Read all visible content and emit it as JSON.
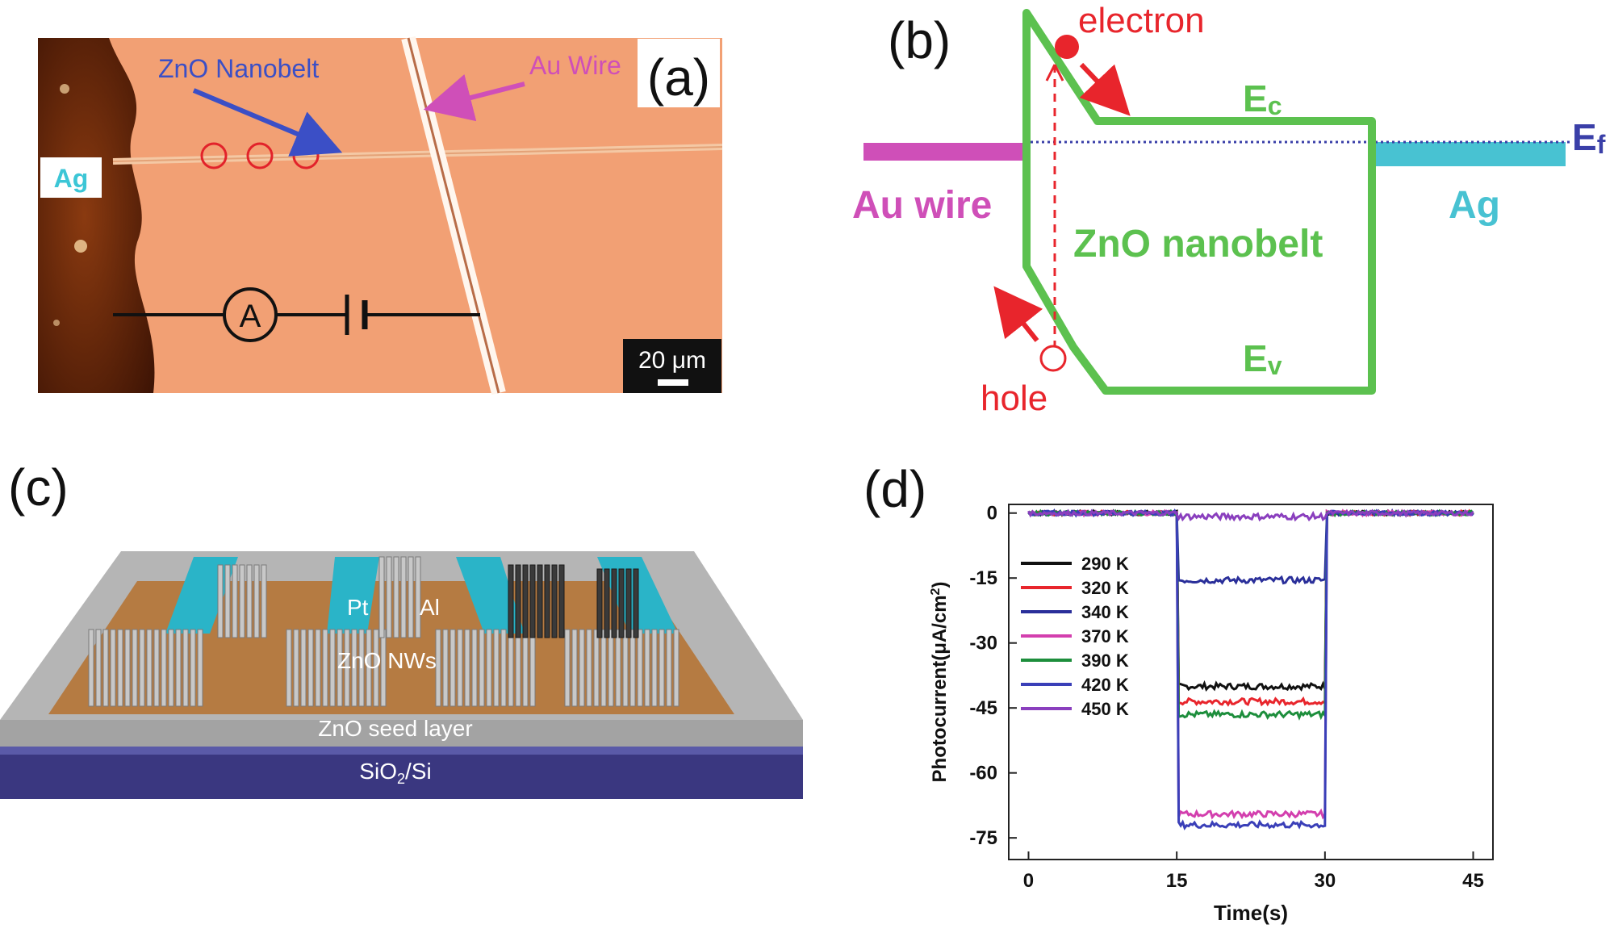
{
  "panel_a": {
    "letter": "(a)",
    "label_nanobelt": "ZnO Nanobelt",
    "label_wire": "Au Wire",
    "label_ag": "Ag",
    "ammeter": "A",
    "scale_bar": "20 μm",
    "colors": {
      "background": "#f2a074",
      "nanobelt_arrow": "#3b4fc6",
      "wire_arrow": "#cf4fb8",
      "circles": "#e2222a",
      "ag_label": "#3cc6d6"
    }
  },
  "panel_b": {
    "letter": "(b)",
    "electron": "electron",
    "hole": "hole",
    "ec_main": "E",
    "ec_sub": "c",
    "ev_main": "E",
    "ev_sub": "v",
    "ef_main": "E",
    "ef_sub": "f",
    "au_wire": "Au wire",
    "ag": "Ag",
    "nanobelt": "ZnO nanobelt",
    "colors": {
      "band": "#5cc14f",
      "au": "#cf4fb8",
      "ag": "#48c2d2",
      "carrier": "#e8252c",
      "fermi": "#3a3fa8"
    }
  },
  "panel_c": {
    "letter": "(c)",
    "pt": "Pt",
    "al": "Al",
    "nws": "ZnO NWs",
    "seed": "ZnO seed layer",
    "substrate_main": "SiO",
    "substrate_sub": "2",
    "substrate_rest": "/Si",
    "colors": {
      "seed": "#a9a9a9",
      "substrate": "#3a3780",
      "electrode": "#b57b42",
      "channel": "#2ab4c8"
    }
  },
  "panel_d": {
    "letter": "(d)",
    "chart_data": {
      "type": "line",
      "xlabel": "Time(s)",
      "ylabel_main": "Photocurrent(μA/cm",
      "ylabel_sup": "2",
      "ylabel_end": ")",
      "xlim": [
        -2,
        47
      ],
      "ylim": [
        -80,
        2
      ],
      "xticks": [
        0,
        15,
        30,
        45
      ],
      "yticks": [
        0,
        -15,
        -30,
        -45,
        -60,
        -75
      ],
      "xtick_labels": [
        "0",
        "15",
        "30",
        "45"
      ],
      "ytick_labels": [
        "0",
        "-15",
        "-30",
        "-45",
        "-60",
        "-75"
      ],
      "legend_position": "left",
      "on_interval": [
        15,
        30
      ],
      "series": [
        {
          "name": "290 K",
          "color": "#111111",
          "off": 0,
          "on": -40
        },
        {
          "name": "320 K",
          "color": "#e8252c",
          "off": 0,
          "on": -43.5
        },
        {
          "name": "340 K",
          "color": "#2a2f9a",
          "off": 0,
          "on": -15.5
        },
        {
          "name": "370 K",
          "color": "#d33fae",
          "off": 0,
          "on": -69.5
        },
        {
          "name": "390 K",
          "color": "#1d8e3c",
          "off": 0,
          "on": -46.5
        },
        {
          "name": "420 K",
          "color": "#3a3fb8",
          "off": 0,
          "on": -72
        },
        {
          "name": "450 K",
          "color": "#8a3fbe",
          "off": 0,
          "on": -0.8
        }
      ]
    }
  }
}
